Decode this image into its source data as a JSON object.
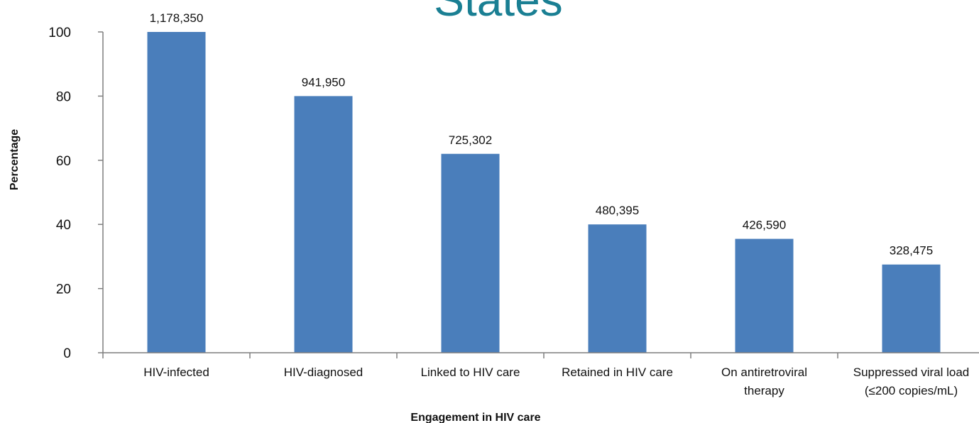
{
  "chart_data": {
    "type": "bar",
    "title": "States",
    "xlabel": "Engagement in HIV care",
    "ylabel": "Percentage",
    "ylim": [
      0,
      100
    ],
    "yticks": [
      0,
      20,
      40,
      60,
      80,
      100
    ],
    "grid": false,
    "legend": "none",
    "bar_color": "#4a7ebb",
    "categories": [
      [
        "HIV-infected"
      ],
      [
        "HIV-diagnosed"
      ],
      [
        "Linked to HIV care"
      ],
      [
        "Retained in HIV care"
      ],
      [
        "On antiretroviral",
        "therapy"
      ],
      [
        "Suppressed viral load",
        "(≤200 copies/mL)"
      ]
    ],
    "values": [
      100,
      80,
      62,
      40,
      35.5,
      27.5
    ],
    "data_labels": [
      "1,178,350",
      "941,950",
      "725,302",
      "480,395",
      "426,590",
      "328,475"
    ]
  }
}
